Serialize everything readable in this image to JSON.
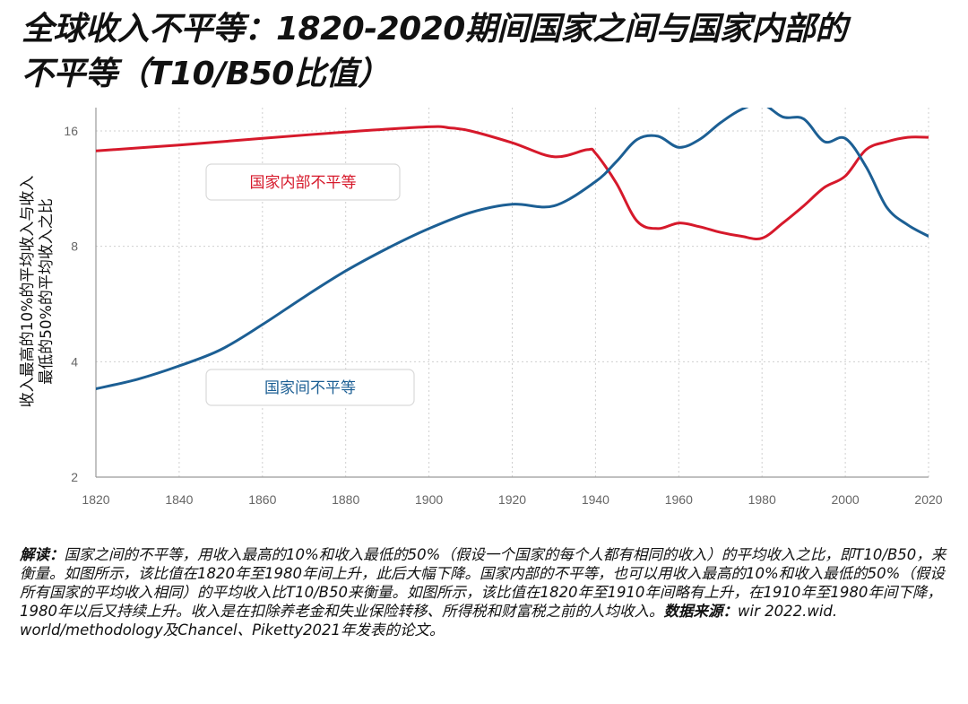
{
  "title": {
    "line1": "全球收入不平等：1820-2020期间国家之间与国家内部的",
    "line2": "不平等（T10/B50比值）"
  },
  "ylabel": {
    "line1": "收入最高的10%的平均收入与收入",
    "line2": "最低的50%的平均收入之比"
  },
  "note": {
    "lead": "解读：",
    "body": "国家之间的不平等，用收入最高的10%和收入最低的50%（假设一个国家的每个人都有相同的收入）的平均收入之比，即T10/B50，来衡量。如图所示，该比值在1820年至1980年间上升，此后大幅下降。国家内部的不平等，也可以用收入最高的10%和收入最低的50%（假设所有国家的平均收入相同）的平均收入比T10/B50来衡量。如图所示，该比值在1820年至1910年间略有上升，在1910年至1980年间下降，1980年以后又持续上升。收入是在扣除养老金和失业保险转移、所得税和财富税之前的人均收入。",
    "source_lead": "数据来源：",
    "source_body": "wir 2022.wid. world/methodology及Chancel、Piketty2021年发表的论文。"
  },
  "chart_data": {
    "type": "line",
    "title": "全球收入不平等：1820-2020期间国家之间与国家内部的不平等（T10/B50比值）",
    "xlabel": "",
    "ylabel": "收入最高的10%的平均收入与收入最低的50%的平均收入之比",
    "yscale": "log2",
    "xlim": [
      1820,
      2020
    ],
    "ylim": [
      2,
      18
    ],
    "xticks": [
      1820,
      1840,
      1860,
      1880,
      1900,
      1920,
      1940,
      1960,
      1980,
      2000,
      2020
    ],
    "yticks": [
      2,
      4,
      8,
      16
    ],
    "grid": true,
    "series": [
      {
        "name": "国家内部不平等",
        "color": "#d6192b",
        "x": [
          1820,
          1840,
          1860,
          1880,
          1900,
          1905,
          1910,
          1920,
          1930,
          1938,
          1940,
          1945,
          1950,
          1955,
          1960,
          1965,
          1970,
          1975,
          1980,
          1985,
          1990,
          1995,
          2000,
          2005,
          2010,
          2015,
          2020
        ],
        "y": [
          14.2,
          14.7,
          15.3,
          15.9,
          16.4,
          16.3,
          16.0,
          14.9,
          13.7,
          14.3,
          14.0,
          11.7,
          9.3,
          8.9,
          9.2,
          9.0,
          8.7,
          8.5,
          8.4,
          9.2,
          10.2,
          11.4,
          12.2,
          14.3,
          15.0,
          15.4,
          15.4
        ]
      },
      {
        "name": "国家间不平等",
        "color": "#1c5f94",
        "x": [
          1820,
          1830,
          1840,
          1850,
          1860,
          1870,
          1880,
          1890,
          1900,
          1910,
          1920,
          1930,
          1940,
          1945,
          1950,
          1955,
          1960,
          1965,
          1970,
          1975,
          1980,
          1985,
          1990,
          1995,
          2000,
          2005,
          2010,
          2015,
          2020
        ],
        "y": [
          3.4,
          3.6,
          3.9,
          4.3,
          5.0,
          5.9,
          6.9,
          7.9,
          8.9,
          9.8,
          10.3,
          10.2,
          11.8,
          13.3,
          15.2,
          15.5,
          14.5,
          15.2,
          16.8,
          18.2,
          18.8,
          17.4,
          17.2,
          15.0,
          15.3,
          12.9,
          10.1,
          9.1,
          8.5
        ]
      }
    ]
  }
}
